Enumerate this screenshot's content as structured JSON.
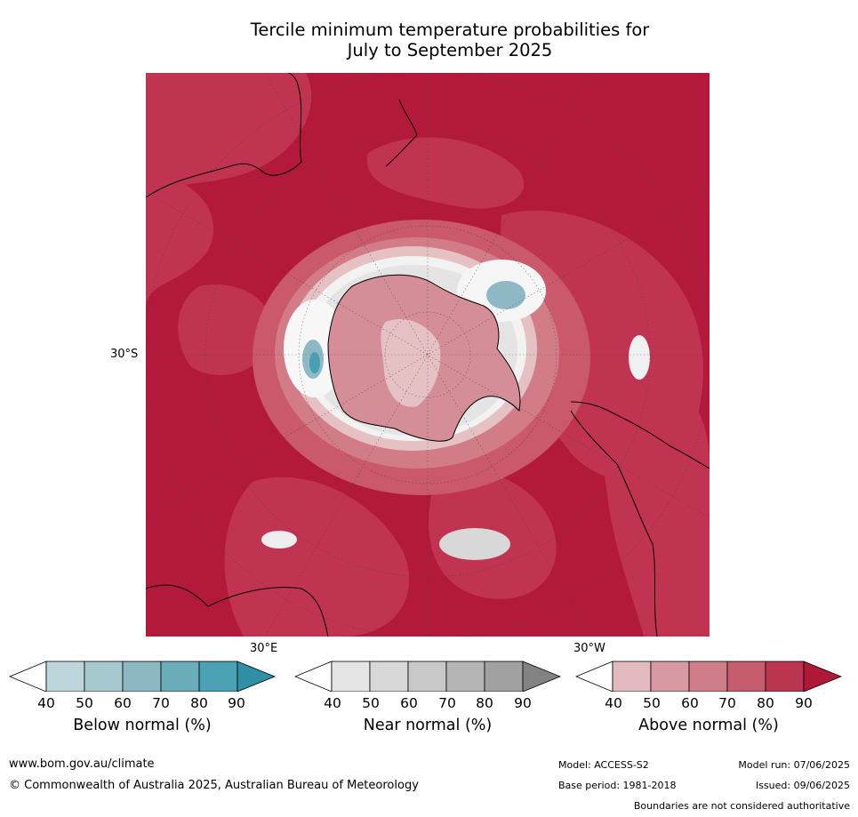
{
  "title": {
    "line1": "Tercile minimum temperature probabilities for",
    "line2": "July to September 2025"
  },
  "map": {
    "projection": "south polar stereographic",
    "lat_label": "30°S",
    "lon_label_east": "30°E",
    "lon_label_west": "30°W",
    "colors": {
      "above_90": "#b2193a",
      "above_80": "#c03452",
      "above_70": "#c9596b",
      "above_60": "#d27c88",
      "above_50": "#dca0a7",
      "above_40": "#e6c1c4",
      "near_normal": "#e4e4e4",
      "below_60": "#8fb8c5",
      "below_80": "#4aa0b3",
      "ocean_white": "#ffffff"
    }
  },
  "colorbars": [
    {
      "id": "below",
      "title": "Below normal (%)",
      "ticks": [
        "40",
        "50",
        "60",
        "70",
        "80",
        "90"
      ],
      "colors": [
        "#ffffff",
        "#bdd6dc",
        "#a6c8cf",
        "#8db7c2",
        "#6aacb8",
        "#4aa2b4",
        "#2e8fa6"
      ]
    },
    {
      "id": "near",
      "title": "Near normal (%)",
      "ticks": [
        "40",
        "50",
        "60",
        "70",
        "80",
        "90"
      ],
      "colors": [
        "#ffffff",
        "#e5e5e5",
        "#d8d8d8",
        "#c8c8c8",
        "#b5b5b5",
        "#a1a1a1",
        "#828282"
      ]
    },
    {
      "id": "above",
      "title": "Above normal (%)",
      "ticks": [
        "40",
        "50",
        "60",
        "70",
        "80",
        "90"
      ],
      "colors": [
        "#ffffff",
        "#e3babe",
        "#d89aa2",
        "#ce7d89",
        "#c65d6e",
        "#bc3550",
        "#b01838"
      ]
    }
  ],
  "footer": {
    "website": "www.bom.gov.au/climate",
    "copyright": "© Commonwealth of Australia 2025, Australian Bureau of Meteorology",
    "model": "Model: ACCESS-S2",
    "model_run": "Model run: 07/06/2025",
    "base_period": "Base period: 1981-2018",
    "issued": "Issued: 09/06/2025",
    "disclaimer": "Boundaries are not considered authoritative"
  }
}
